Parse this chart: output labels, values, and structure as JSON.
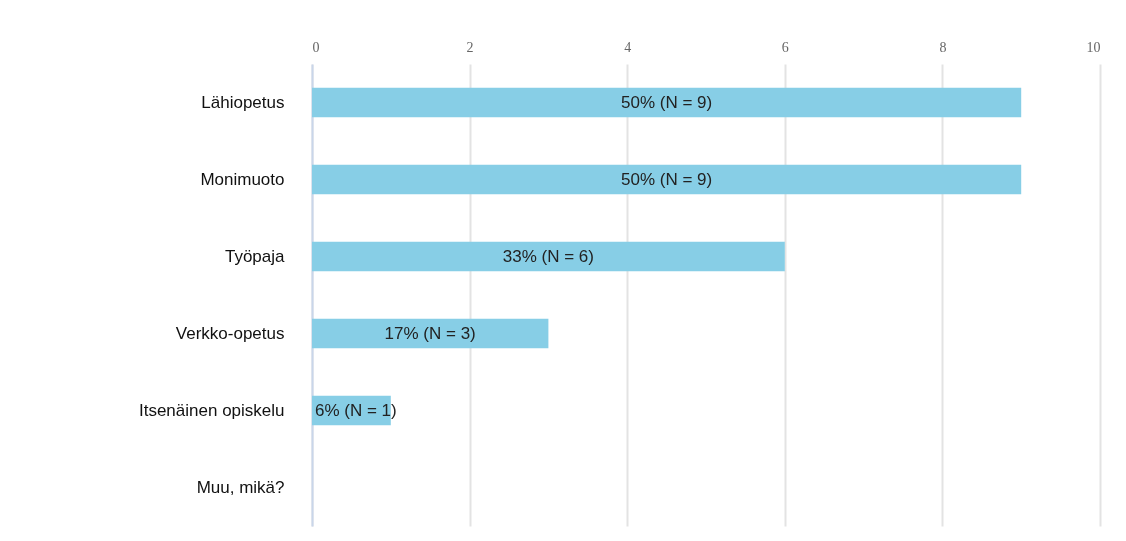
{
  "chart_data": {
    "type": "bar",
    "orientation": "horizontal",
    "categories": [
      "Lähiopetus",
      "Monimuoto",
      "Työpaja",
      "Verkko-opetus",
      "Itsenäinen opiskelu",
      "Muu, mikä?"
    ],
    "values": [
      9,
      9,
      6,
      3,
      1,
      0
    ],
    "value_labels": [
      "50% (N = 9)",
      "50% (N = 9)",
      "33% (N = 6)",
      "17% (N = 3)",
      "6% (N = 1)",
      null
    ],
    "color": "#87cee6",
    "xlim": [
      0,
      10
    ],
    "xticks": [
      0,
      2,
      4,
      6,
      8,
      10
    ],
    "grid": "x"
  }
}
